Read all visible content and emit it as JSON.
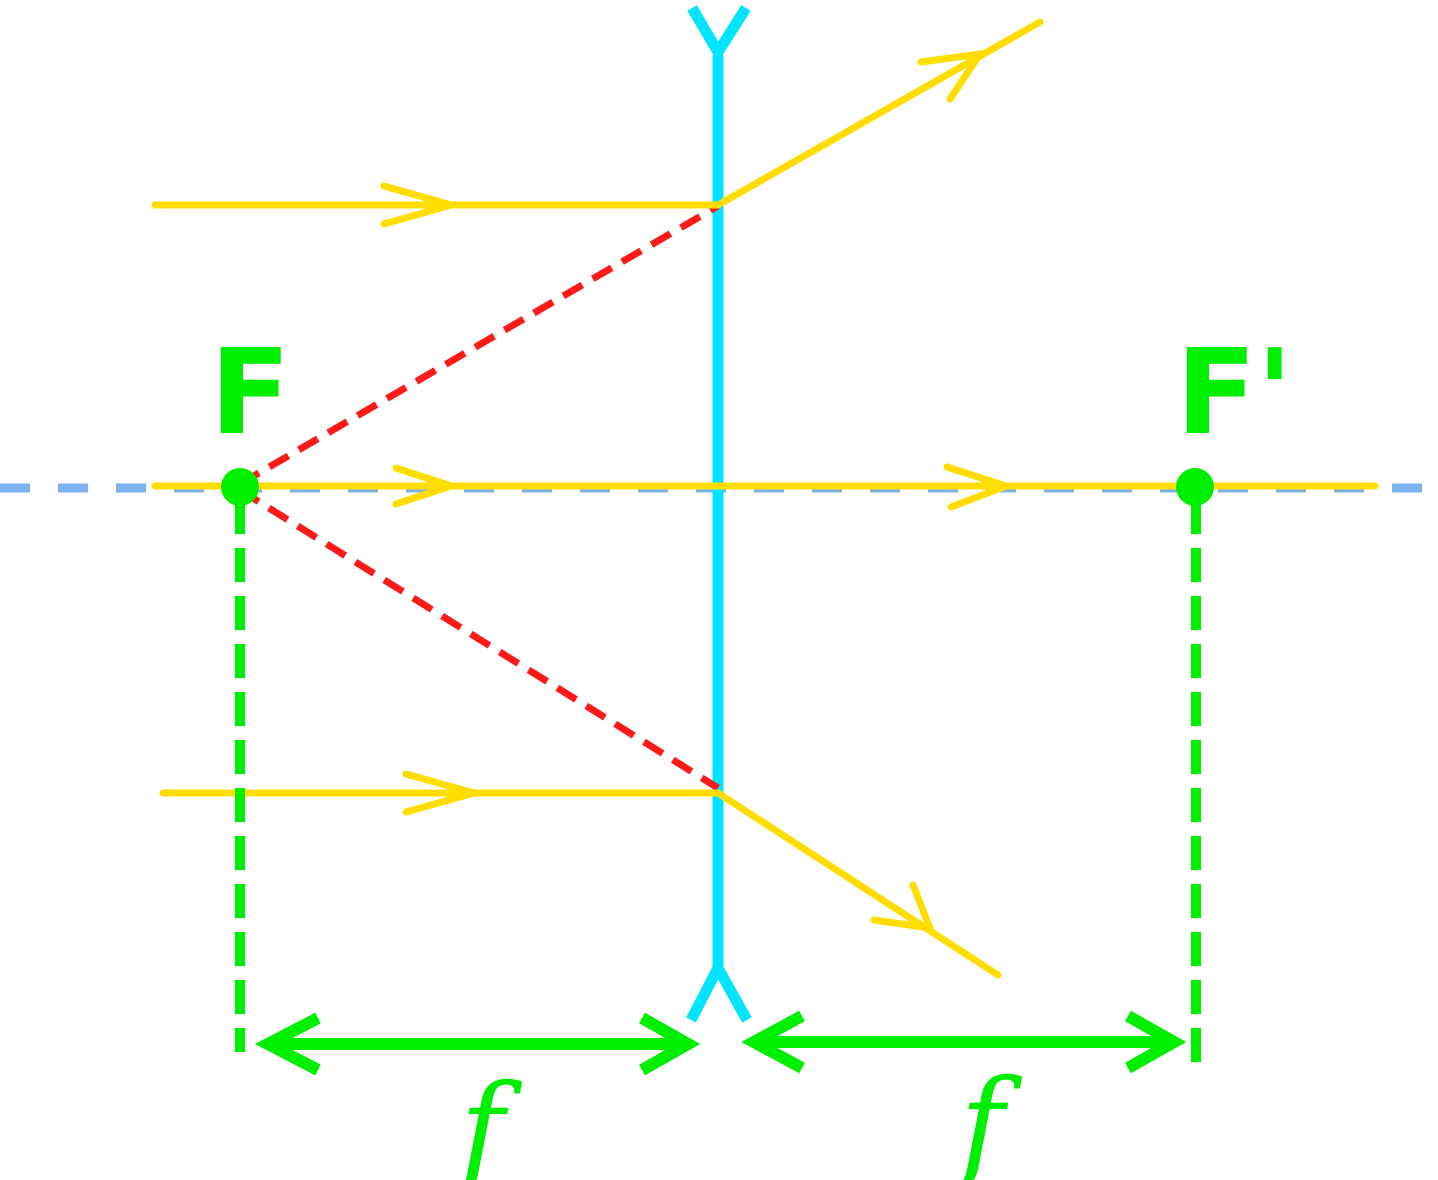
{
  "labels": {
    "focus_left": "F",
    "focus_right": "F'",
    "focal_left": "f",
    "focal_right": "f"
  },
  "colors": {
    "background": "#ffffff",
    "lens": "#00e5ff",
    "ray": "#ffdd00",
    "construction": "#ff1a1a",
    "focus": "#00ee00",
    "axis": "#7fb0ee"
  },
  "icons": {
    "lens": "diverging-lens-icon",
    "arrow": "double-headed-arrow-icon"
  }
}
